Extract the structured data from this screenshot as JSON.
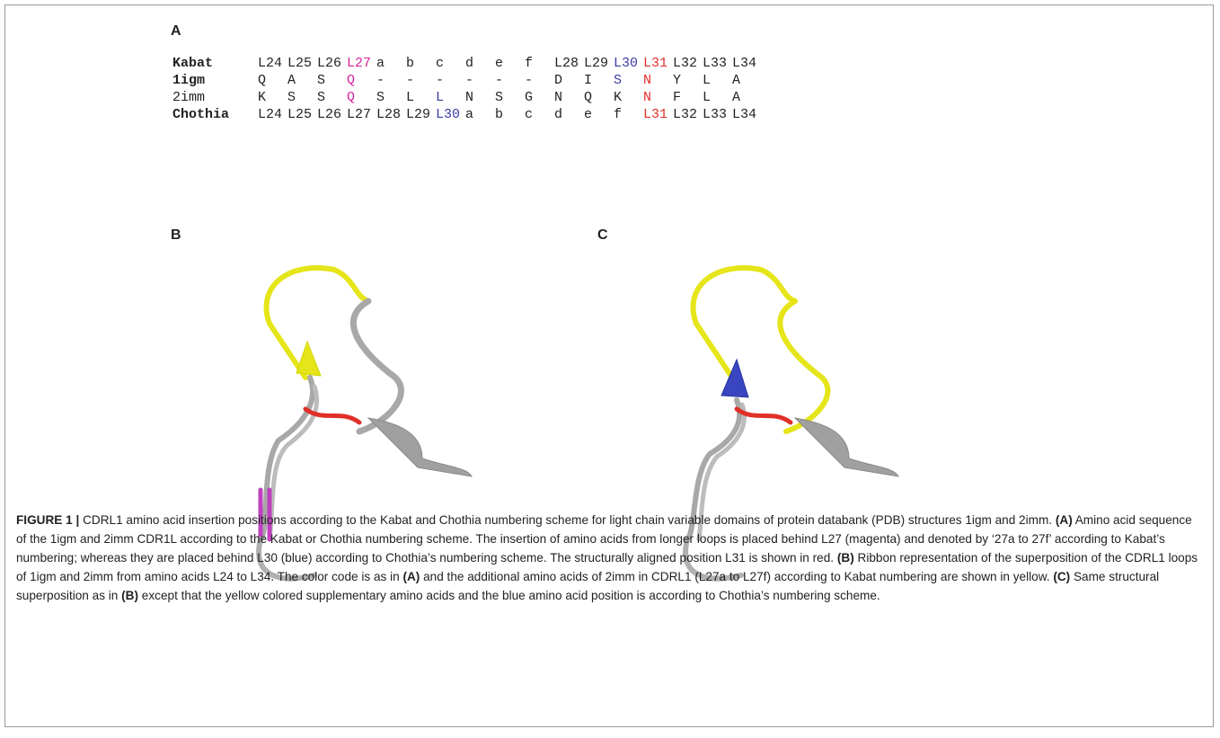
{
  "panels": {
    "a": {
      "label": "A",
      "rows": [
        {
          "label": "Kabat",
          "bold": true,
          "cells": [
            "L24",
            "L25",
            "L26",
            {
              "text": "L27",
              "color": "#d4249c"
            },
            "a",
            "b",
            "c",
            "d",
            "e",
            "f",
            "L28",
            "L29",
            {
              "text": "L30",
              "color": "#3b3ba6"
            },
            {
              "text": "L31",
              "color": "#e0302a"
            },
            "L32",
            "L33",
            "L34"
          ]
        },
        {
          "label": "1igm",
          "bold": true,
          "cells": [
            "Q",
            "A",
            "S",
            {
              "text": "Q",
              "color": "#d4249c"
            },
            "-",
            "-",
            "-",
            "-",
            "-",
            "-",
            "D",
            "I",
            {
              "text": "S",
              "color": "#3b3ba6"
            },
            {
              "text": "N",
              "color": "#e0302a"
            },
            "Y",
            "L",
            "A"
          ]
        },
        {
          "label": "2imm",
          "bold": false,
          "cells": [
            "K",
            "S",
            "S",
            {
              "text": "Q",
              "color": "#d4249c"
            },
            "S",
            "L",
            {
              "text": "L",
              "color": "#3b3ba6"
            },
            "N",
            "S",
            "G",
            "N",
            "Q",
            "K",
            {
              "text": "N",
              "color": "#e0302a"
            },
            "F",
            "L",
            "A"
          ]
        },
        {
          "label": "Chothia",
          "bold": true,
          "cells": [
            "L24",
            "L25",
            "L26",
            "L27",
            "L28",
            "L29",
            {
              "text": "L30",
              "color": "#3b3ba6"
            },
            "a",
            "b",
            "c",
            "d",
            "e",
            "f",
            {
              "text": "L31",
              "color": "#e0302a"
            },
            "L32",
            "L33",
            "L34"
          ]
        }
      ]
    },
    "b": {
      "label": "B"
    },
    "c": {
      "label": "C"
    }
  },
  "caption": [
    {
      "text": "FIGURE 1 | ",
      "bold": true
    },
    {
      "text": "CDRL1 amino acid insertion positions according to the Kabat and Chothia numbering scheme for light chain variable domains of protein databank (PDB) structures 1igm and 2imm. ",
      "bold": false
    },
    {
      "text": "(A)",
      "bold": true
    },
    {
      "text": " Amino acid sequence of the 1igm and 2imm CDR1L according to the Kabat or Chothia numbering scheme. The insertion of amino acids from longer loops is placed behind L27 (magenta) and denoted by ‘27a to 27f’ according to Kabat’s numbering; whereas they are placed behind L30 (blue) according to Chothia’s numbering scheme. The structurally aligned position L31 is shown in red. ",
      "bold": false
    },
    {
      "text": "(B)",
      "bold": true
    },
    {
      "text": " Ribbon representation of the superposition of the CDRL1 loops of 1igm and 2imm from amino acids L24 to L34. The color code is as in ",
      "bold": false
    },
    {
      "text": "(A)",
      "bold": true
    },
    {
      "text": " and the additional amino acids of 2imm in CDRL1 (L27a to L27f) according to Kabat numbering are shown in yellow. ",
      "bold": false
    },
    {
      "text": "(C)",
      "bold": true
    },
    {
      "text": " Same structural superposition as in ",
      "bold": false
    },
    {
      "text": "(B)",
      "bold": true
    },
    {
      "text": " except that the yellow colored supplementary amino acids and the blue amino acid position is according to Chothia’s numbering scheme.",
      "bold": false
    }
  ]
}
